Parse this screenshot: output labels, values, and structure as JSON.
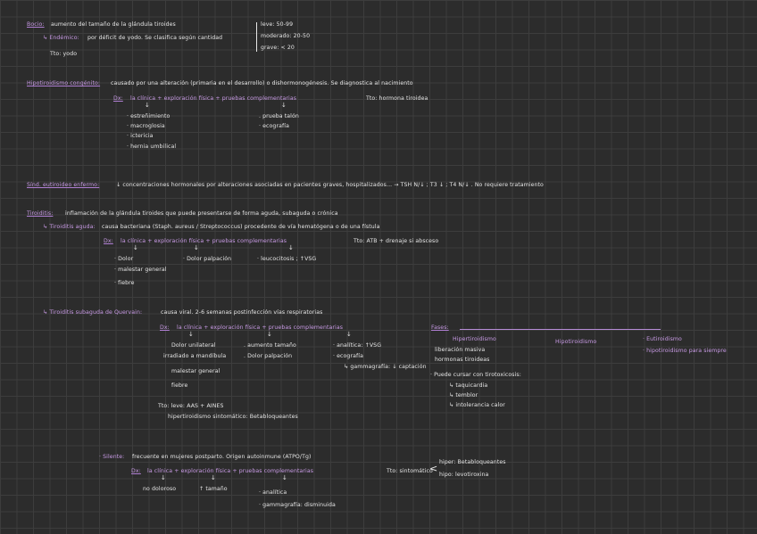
{
  "bocio": {
    "title": "Bocio:",
    "def": "aumento del tamaño de la glándula tiroides",
    "endemico_label": "↳ Endémico:",
    "endemico": "por déficit de yodo. Se clasifica según cantidad",
    "tto": "Tto: yodo",
    "grados": [
      "leve: 50-99",
      "moderado: 20-50",
      "grave: < 20"
    ]
  },
  "hipo_congenito": {
    "title": "Hipotiroidismo congénito:",
    "def": "causado por una alteración (primaria en el desarrollo) o dishormonogénesis. Se diagnostica al nacimiento",
    "dx": "Dx:",
    "dx_line": "la clínica + exploración física + pruebas complementarias",
    "tto": "Tto: hormona tiroidea",
    "clinica": [
      "· estreñimiento",
      "· macroglosia",
      "· ictericia",
      "· hernia umbilical"
    ],
    "pruebas": [
      ". prueba talón",
      "· ecografía"
    ]
  },
  "eutiroideo": {
    "title": "Sínd. eutiroideo enfermo:",
    "def": "↓ concentraciones hormonales por alteraciones asociadas en pacientes graves, hospitalizados...  →  TSH N/↓ ; T3 ↓ ; T4 N/↓ . No requiere tratamiento"
  },
  "tiroiditis": {
    "title": "Tiroiditis:",
    "def": "inflamación de la glándula tiroides que puede presentarse de forma aguda, subaguda o crónica"
  },
  "aguda": {
    "title": "↳ Tiroiditis aguda:",
    "def": "causa bacteriana (Staph. aureus / Streptococcus) procedente de vía hematógena o de una fístula",
    "dx": "Dx:",
    "dx_line": "la clínica  +  exploración física  +  pruebas complementarias",
    "tto": "Tto: ATB + drenaje si absceso",
    "clinica": [
      "· Dolor",
      "· malestar general",
      "· fiebre"
    ],
    "exploracion": "· Dolor palpación",
    "pruebas": "· leucocitosis ; ↑VSG"
  },
  "subaguda": {
    "title": "↳ Tiroiditis subaguda de Quervain:",
    "def": "causa viral. 2-6 semanas postinfección vías respiratorias",
    "dx": "Dx:",
    "dx_line": "la clínica  +  exploración física  +  pruebas complementarias",
    "clinica": [
      "Dolor unilateral",
      "irradiado a mandíbula",
      "malestar general",
      "fiebre"
    ],
    "exploracion": [
      ". aumento tamaño",
      ". Dolor palpación"
    ],
    "pruebas": [
      "· analítica: ↑VSG",
      "· ecografía",
      "↳ gammagrafía: ↓ captación"
    ],
    "tto_leve": "Tto: leve: AAS + AINES",
    "tto_hiper": "hipertiroidismo sintomático: Betabloqueantes",
    "fases": {
      "label": "Fases:",
      "names": [
        "Hipertiroidismo",
        "Hipotiroidismo",
        "· Eutiroidismo"
      ],
      "hiper_notes": [
        "liberación masiva",
        "hormonas tiroideas"
      ],
      "tirotox": "· Puede cursar con tirotoxicosis:",
      "sintomas": [
        "↳ taquicardia",
        "↳ temblor",
        "↳ intolerancia calor"
      ],
      "euti_note": "· hipotiroidismo para siempre"
    }
  },
  "silente": {
    "title": "· Silente:",
    "def": "frecuente en mujeres postparto. Origen autoinmune (ATPO/Tg)",
    "dx": "Dx:",
    "dx_line": "la clínica  +  exploración física  +  pruebas complementarias",
    "clinica": "no doloroso",
    "exploracion": "↑ tamaño",
    "pruebas": [
      "· analítica",
      "· gammagrafía: disminuida"
    ],
    "tto": "Tto: sintomático",
    "tto_opts": [
      "hiper: Betabloqueantes",
      "hipo: levotiroxina"
    ]
  }
}
